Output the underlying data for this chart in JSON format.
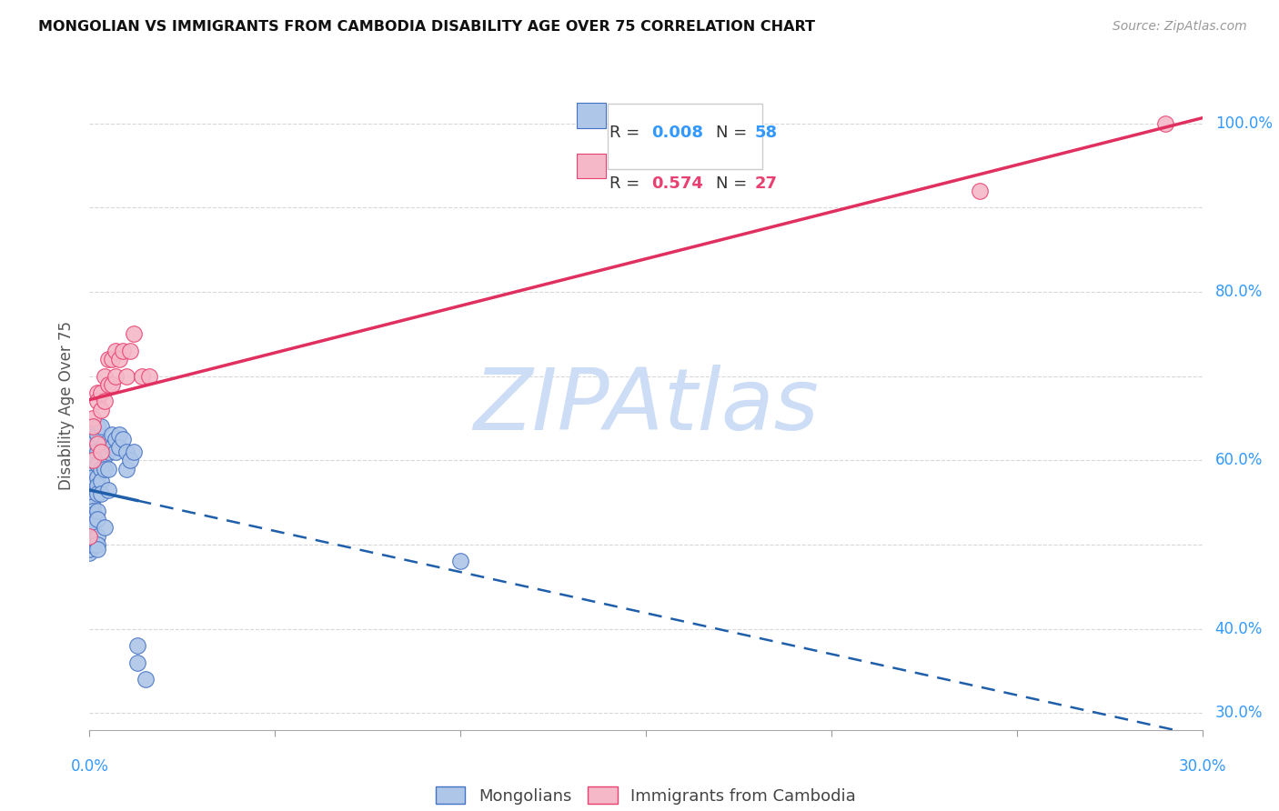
{
  "title": "MONGOLIAN VS IMMIGRANTS FROM CAMBODIA DISABILITY AGE OVER 75 CORRELATION CHART",
  "source": "Source: ZipAtlas.com",
  "ylabel": "Disability Age Over 75",
  "mongolian_r": "0.008",
  "mongolian_n": "58",
  "cambodia_r": "0.574",
  "cambodia_n": "27",
  "mongolian_x": [
    0.0,
    0.0,
    0.0,
    0.0,
    0.0,
    0.0,
    0.001,
    0.001,
    0.001,
    0.001,
    0.001,
    0.001,
    0.001,
    0.001,
    0.001,
    0.001,
    0.001,
    0.001,
    0.001,
    0.002,
    0.002,
    0.002,
    0.002,
    0.002,
    0.002,
    0.002,
    0.002,
    0.002,
    0.002,
    0.002,
    0.002,
    0.003,
    0.003,
    0.003,
    0.003,
    0.003,
    0.004,
    0.004,
    0.004,
    0.004,
    0.005,
    0.005,
    0.005,
    0.006,
    0.006,
    0.007,
    0.007,
    0.008,
    0.008,
    0.009,
    0.01,
    0.01,
    0.011,
    0.012,
    0.013,
    0.013,
    0.015,
    0.1
  ],
  "mongolian_y": [
    0.49,
    0.5,
    0.51,
    0.505,
    0.495,
    0.5,
    0.62,
    0.61,
    0.6,
    0.59,
    0.58,
    0.56,
    0.555,
    0.545,
    0.54,
    0.535,
    0.53,
    0.525,
    0.5,
    0.64,
    0.63,
    0.61,
    0.595,
    0.58,
    0.57,
    0.56,
    0.54,
    0.53,
    0.51,
    0.5,
    0.495,
    0.64,
    0.61,
    0.59,
    0.575,
    0.56,
    0.62,
    0.605,
    0.59,
    0.52,
    0.61,
    0.59,
    0.565,
    0.63,
    0.615,
    0.625,
    0.61,
    0.63,
    0.615,
    0.625,
    0.61,
    0.59,
    0.6,
    0.61,
    0.38,
    0.36,
    0.34,
    0.48
  ],
  "cambodia_x": [
    0.0,
    0.001,
    0.001,
    0.001,
    0.002,
    0.002,
    0.002,
    0.003,
    0.003,
    0.003,
    0.004,
    0.004,
    0.005,
    0.005,
    0.006,
    0.006,
    0.007,
    0.007,
    0.008,
    0.009,
    0.01,
    0.011,
    0.012,
    0.014,
    0.016,
    0.24,
    0.29
  ],
  "cambodia_y": [
    0.51,
    0.65,
    0.64,
    0.6,
    0.68,
    0.67,
    0.62,
    0.68,
    0.66,
    0.61,
    0.7,
    0.67,
    0.72,
    0.69,
    0.72,
    0.69,
    0.73,
    0.7,
    0.72,
    0.73,
    0.7,
    0.73,
    0.75,
    0.7,
    0.7,
    0.92,
    1.0
  ],
  "mongolian_color": "#aec6e8",
  "mongolian_edge_color": "#4472c4",
  "cambodia_color": "#f4b8c8",
  "cambodia_edge_color": "#e84070",
  "mongolian_line_color": "#1f5faa",
  "cambodia_line_color": "#e03060",
  "watermark_text": "ZIPAtlas",
  "watermark_color": "#ccddf5",
  "xlim": [
    0.0,
    0.3
  ],
  "ylim": [
    0.28,
    1.05
  ],
  "right_yticks": [
    0.3,
    0.4,
    0.6,
    0.8,
    1.0
  ],
  "right_yticklabels": [
    "30.0%",
    "40.0%",
    "60.0%",
    "80.0%",
    "100.0%"
  ],
  "xtick_positions": [
    0.0,
    0.05,
    0.1,
    0.15,
    0.2,
    0.25,
    0.3
  ],
  "grid_color": "#d8d8d8",
  "grid_yticks": [
    0.3,
    0.4,
    0.5,
    0.6,
    0.7,
    0.8,
    0.9,
    1.0
  ],
  "background_color": "#ffffff",
  "title_fontsize": 11.5,
  "source_fontsize": 10,
  "axis_label_fontsize": 12,
  "tick_label_fontsize": 12,
  "legend_fontsize": 13
}
